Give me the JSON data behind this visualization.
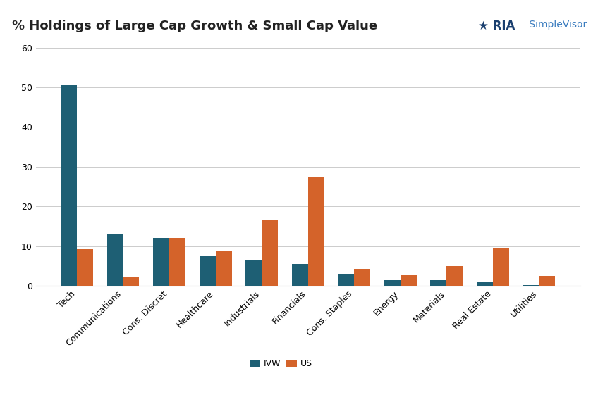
{
  "title": "% Holdings of Large Cap Growth & Small Cap Value",
  "categories": [
    "Tech",
    "Communications",
    "Cons. Discret",
    "Healthcare",
    "Industrials",
    "Financials",
    "Cons. Staples",
    "Energy",
    "Materials",
    "Real Estate",
    "Utilities"
  ],
  "ivw_values": [
    50.5,
    13.0,
    12.0,
    7.5,
    6.5,
    5.5,
    3.0,
    1.5,
    1.5,
    1.0,
    0.2
  ],
  "us_values": [
    9.2,
    2.3,
    12.0,
    8.8,
    16.5,
    27.5,
    4.2,
    2.7,
    5.0,
    9.5,
    2.5
  ],
  "ivw_color": "#1e5f74",
  "us_color": "#d4632a",
  "ylim": [
    0,
    60
  ],
  "yticks": [
    0,
    10,
    20,
    30,
    40,
    50,
    60
  ],
  "legend_labels": [
    "IVW",
    "US"
  ],
  "bar_width": 0.35,
  "background_color": "#ffffff",
  "grid_color": "#cccccc",
  "title_fontsize": 13,
  "axis_fontsize": 9,
  "title_color": "#222222",
  "ria_color": "#1a3f6f",
  "simplevisor_color": "#3a7cbf"
}
